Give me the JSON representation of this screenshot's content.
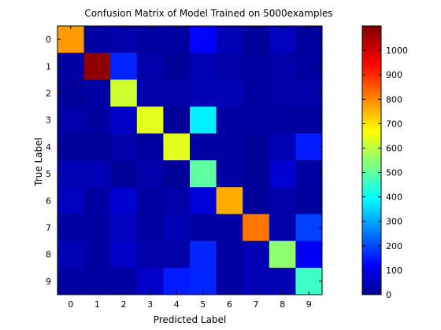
{
  "chart_data": {
    "type": "heatmap",
    "title": "Confusion Matrix of Model Trained on 5000examples",
    "xlabel": "Predicted Label",
    "ylabel": "True Label",
    "x_categories": [
      "0",
      "1",
      "2",
      "3",
      "4",
      "5",
      "6",
      "7",
      "8",
      "9"
    ],
    "y_categories": [
      "0",
      "1",
      "2",
      "3",
      "4",
      "5",
      "6",
      "7",
      "8",
      "9"
    ],
    "colormap": "jet",
    "color_range": [
      0,
      1100
    ],
    "colorbar_ticks": [
      0,
      100,
      200,
      300,
      400,
      500,
      600,
      700,
      800,
      900,
      1000
    ],
    "values": [
      [
        780,
        20,
        30,
        20,
        20,
        120,
        40,
        10,
        50,
        15
      ],
      [
        20,
        1080,
        160,
        30,
        10,
        40,
        30,
        20,
        30,
        20
      ],
      [
        10,
        20,
        620,
        30,
        30,
        40,
        40,
        20,
        30,
        30
      ],
      [
        30,
        20,
        60,
        640,
        10,
        380,
        20,
        20,
        20,
        15
      ],
      [
        10,
        10,
        30,
        20,
        640,
        20,
        20,
        10,
        40,
        150
      ],
      [
        40,
        40,
        10,
        30,
        10,
        500,
        20,
        10,
        70,
        20
      ],
      [
        50,
        20,
        70,
        20,
        30,
        80,
        760,
        10,
        30,
        15
      ],
      [
        20,
        20,
        50,
        20,
        40,
        20,
        20,
        820,
        30,
        190
      ],
      [
        40,
        20,
        60,
        30,
        30,
        160,
        20,
        40,
        550,
        110
      ],
      [
        20,
        20,
        20,
        60,
        150,
        160,
        20,
        40,
        40,
        460
      ]
    ]
  }
}
